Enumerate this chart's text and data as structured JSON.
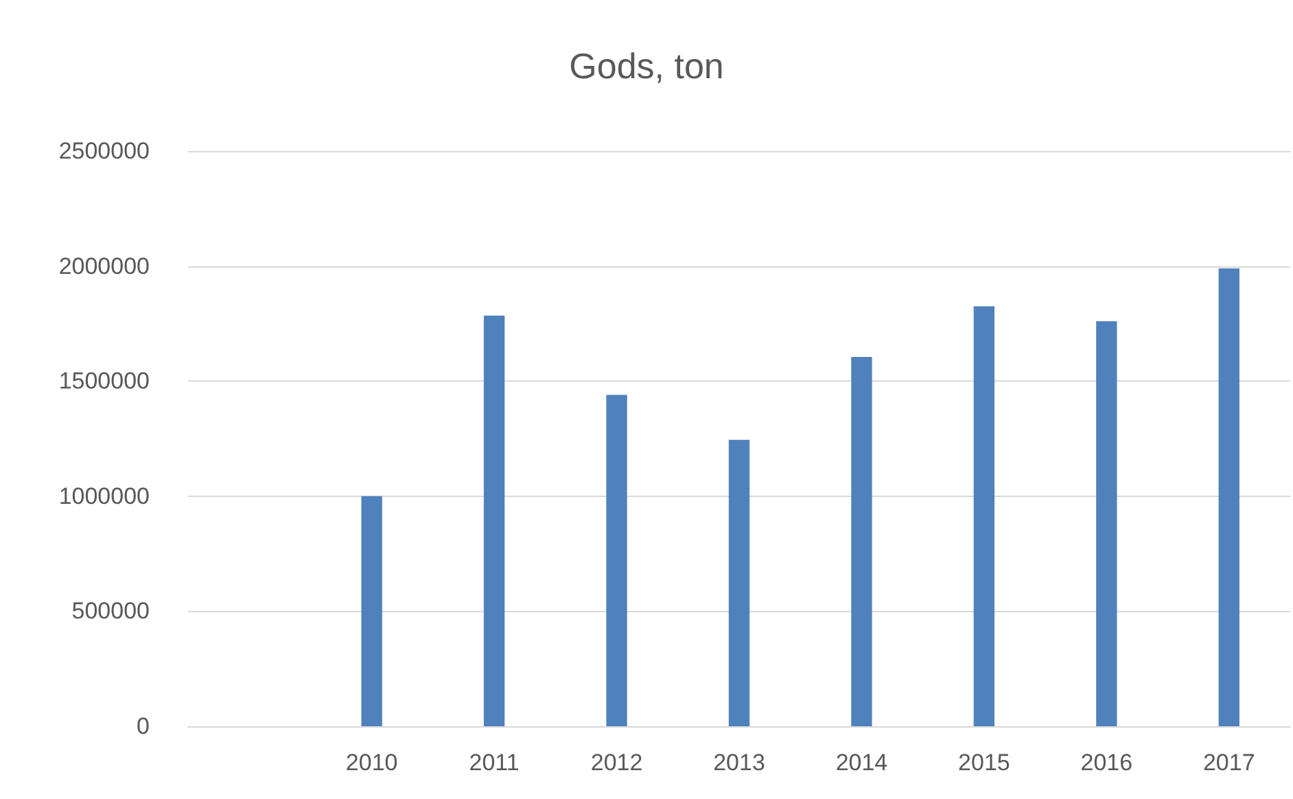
{
  "chart_data": {
    "type": "bar",
    "title": "Gods, ton",
    "categories": [
      null,
      "2010",
      "2011",
      "2012",
      "2013",
      "2014",
      "2015",
      "2016",
      "2017"
    ],
    "values": [
      null,
      1000000,
      1785000,
      1440000,
      1245000,
      1605000,
      1825000,
      1760000,
      1990000
    ],
    "color": "#4f81bd",
    "ylim": [
      0,
      2500000
    ],
    "yticks": [
      0,
      500000,
      1000000,
      1500000,
      2000000,
      2500000
    ],
    "grid": "y"
  }
}
